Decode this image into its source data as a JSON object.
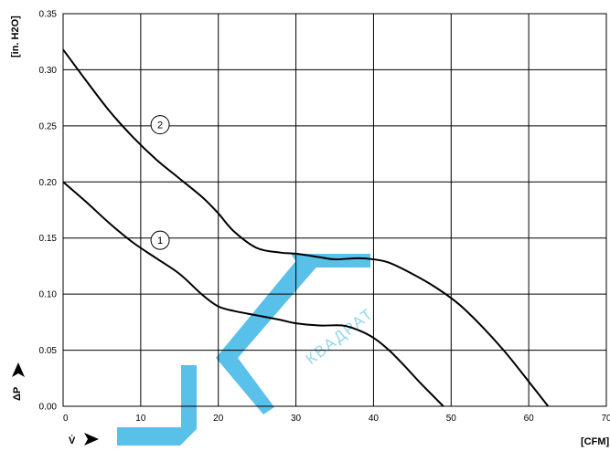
{
  "chart_data": {
    "type": "line",
    "xlabel": "[CFM]",
    "ylabel": "[in. H2O]",
    "xlim": [
      0,
      70
    ],
    "ylim": [
      0,
      0.35
    ],
    "x_ticks": [
      "0",
      "10",
      "20",
      "30",
      "40",
      "50",
      "60",
      "70"
    ],
    "y_ticks": [
      "0.00",
      "0.05",
      "0.10",
      "0.15",
      "0.20",
      "0.25",
      "0.30",
      "0.35"
    ],
    "grid": true,
    "flow_symbol": "V̇",
    "pressure_symbol": "ΔP",
    "series": [
      {
        "label": "1",
        "label_at": [
          12.5,
          0.148
        ],
        "x": [
          0,
          3,
          6,
          9,
          12,
          15,
          18,
          20,
          22,
          25,
          28,
          30,
          33,
          36,
          38,
          40,
          42,
          44,
          46,
          48,
          49
        ],
        "y": [
          0.2,
          0.182,
          0.163,
          0.146,
          0.132,
          0.118,
          0.099,
          0.089,
          0.085,
          0.081,
          0.077,
          0.074,
          0.072,
          0.072,
          0.068,
          0.061,
          0.05,
          0.036,
          0.021,
          0.007,
          0.0
        ]
      },
      {
        "label": "2",
        "label_at": [
          12.5,
          0.251
        ],
        "x": [
          0,
          3,
          6,
          9,
          12,
          15,
          18,
          20,
          22,
          25,
          28,
          30,
          33,
          35,
          38,
          40,
          42,
          45,
          48,
          51,
          54,
          57,
          60,
          62.5
        ],
        "y": [
          0.318,
          0.29,
          0.263,
          0.24,
          0.22,
          0.203,
          0.186,
          0.172,
          0.156,
          0.141,
          0.137,
          0.136,
          0.133,
          0.131,
          0.132,
          0.131,
          0.128,
          0.118,
          0.106,
          0.091,
          0.071,
          0.048,
          0.022,
          0.0
        ]
      }
    ]
  },
  "watermark": {
    "text": "КВАДРАТ",
    "color": "#3cb6e6"
  }
}
